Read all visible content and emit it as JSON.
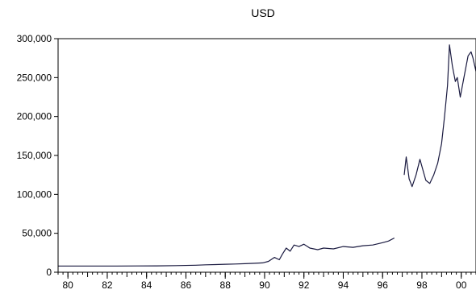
{
  "chart_data": {
    "type": "line",
    "title": "USD",
    "xlabel": "",
    "ylabel": "",
    "x_range": [
      1979.5,
      2000.75
    ],
    "ylim": [
      0,
      300000
    ],
    "grid": false,
    "legend": "none",
    "y_ticks": [
      0,
      50000,
      100000,
      150000,
      200000,
      250000,
      300000
    ],
    "y_tick_labels": [
      "0",
      "50,000",
      "100,000",
      "150,000",
      "200,000",
      "250,000",
      "300,000"
    ],
    "x_ticks": [
      1980,
      1982,
      1984,
      1986,
      1988,
      1990,
      1992,
      1994,
      1996,
      1998,
      2000
    ],
    "x_tick_labels": [
      "80",
      "82",
      "84",
      "86",
      "88",
      "90",
      "92",
      "94",
      "96",
      "98",
      "00"
    ],
    "colors": {
      "line": "#1a1a40",
      "axis": "#000000",
      "background": "#ffffff"
    },
    "series": [
      {
        "segments": [
          [
            [
              1979.5,
              8000
            ],
            [
              1981.0,
              8000
            ],
            [
              1982.5,
              8000
            ],
            [
              1983.5,
              8100
            ],
            [
              1984.5,
              8200
            ],
            [
              1985.5,
              8500
            ],
            [
              1986.5,
              9000
            ],
            [
              1987.0,
              9500
            ],
            [
              1987.5,
              9800
            ],
            [
              1988.0,
              10200
            ],
            [
              1988.5,
              10600
            ],
            [
              1989.0,
              11000
            ],
            [
              1989.5,
              11500
            ],
            [
              1989.9,
              12000
            ],
            [
              1990.2,
              14000
            ],
            [
              1990.5,
              19000
            ],
            [
              1990.75,
              16000
            ],
            [
              1990.9,
              23000
            ],
            [
              1991.1,
              31000
            ],
            [
              1991.3,
              27000
            ],
            [
              1991.5,
              35000
            ],
            [
              1991.75,
              33000
            ],
            [
              1992.0,
              36000
            ],
            [
              1992.3,
              31000
            ],
            [
              1992.7,
              29000
            ],
            [
              1993.0,
              31000
            ],
            [
              1993.5,
              30000
            ],
            [
              1994.0,
              33000
            ],
            [
              1994.5,
              32000
            ],
            [
              1995.0,
              34000
            ],
            [
              1995.5,
              35000
            ],
            [
              1996.0,
              38000
            ],
            [
              1996.3,
              40000
            ],
            [
              1996.6,
              44000
            ]
          ],
          [
            [
              1997.1,
              125000
            ],
            [
              1997.2,
              148000
            ],
            [
              1997.35,
              120000
            ],
            [
              1997.5,
              110000
            ],
            [
              1997.7,
              125000
            ],
            [
              1997.9,
              145000
            ],
            [
              1998.2,
              118000
            ],
            [
              1998.4,
              114000
            ],
            [
              1998.6,
              125000
            ],
            [
              1998.8,
              140000
            ],
            [
              1999.0,
              165000
            ],
            [
              1999.15,
              200000
            ],
            [
              1999.3,
              240000
            ],
            [
              1999.4,
              292000
            ],
            [
              1999.55,
              265000
            ],
            [
              1999.7,
              245000
            ],
            [
              1999.8,
              250000
            ],
            [
              1999.95,
              225000
            ],
            [
              2000.15,
              252000
            ],
            [
              2000.35,
              278000
            ],
            [
              2000.5,
              283000
            ],
            [
              2000.6,
              275000
            ],
            [
              2000.75,
              258000
            ]
          ]
        ]
      }
    ]
  }
}
